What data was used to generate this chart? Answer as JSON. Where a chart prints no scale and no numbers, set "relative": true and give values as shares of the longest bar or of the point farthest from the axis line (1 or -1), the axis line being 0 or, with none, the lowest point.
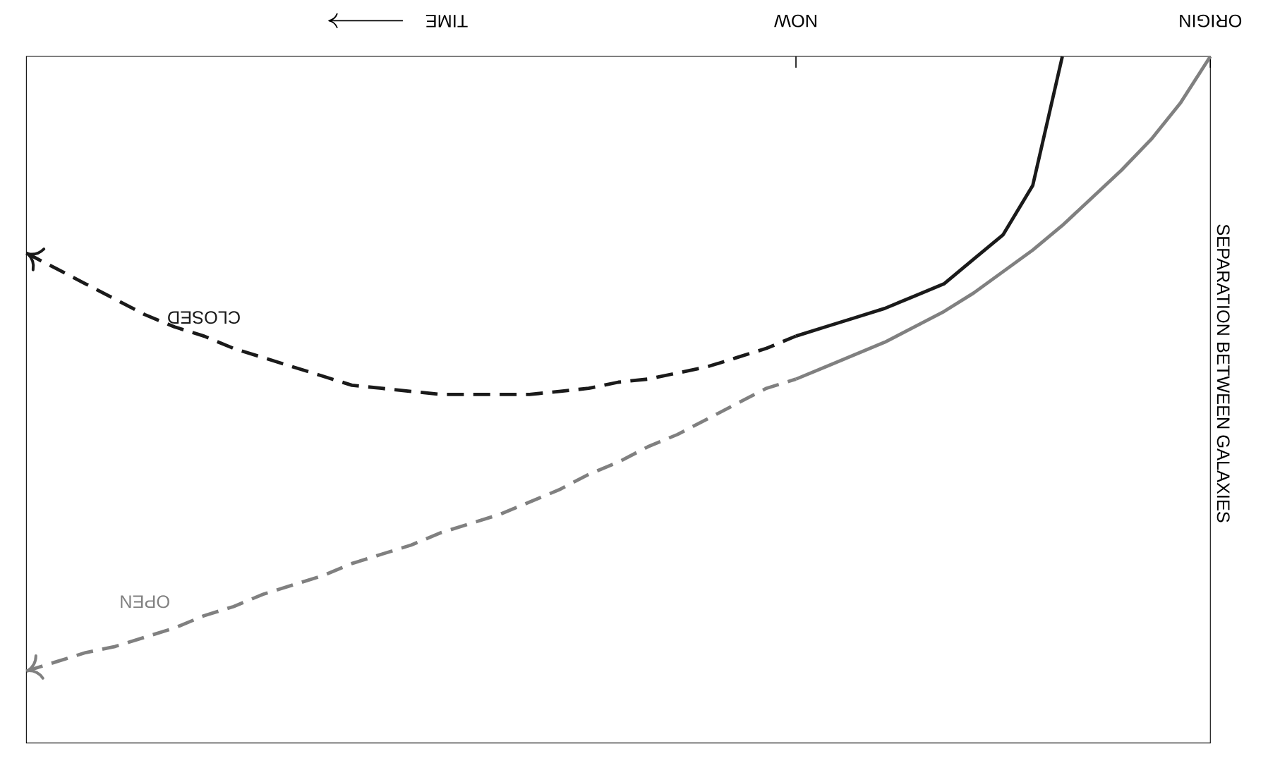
{
  "chart_data": {
    "type": "line",
    "relative": true,
    "xlabel": "TIME",
    "ylabel": "SEPARATION BETWEEN GALAXIES",
    "categories": [
      null,
      null,
      null,
      null,
      null,
      null,
      null,
      null,
      null,
      null,
      null,
      null,
      null,
      null,
      null,
      null,
      null,
      null,
      null,
      null,
      null,
      null,
      null,
      null,
      null,
      null,
      "NOW",
      null,
      null,
      null,
      null,
      null,
      null,
      null,
      null,
      null,
      null,
      null,
      null,
      null,
      "ORIGIN"
    ],
    "tick_labels": "x",
    "series": [
      {
        "color": "#1a1a1a",
        "line_style": "solid",
        "values": [
          null,
          null,
          null,
          null,
          null,
          null,
          null,
          null,
          null,
          null,
          null,
          null,
          null,
          null,
          null,
          null,
          null,
          null,
          null,
          null,
          null,
          null,
          null,
          null,
          null,
          null,
          -0.455,
          -0.44,
          -0.425,
          -0.41,
          -0.39,
          -0.37,
          -0.33,
          -0.29,
          -0.21,
          0,
          null,
          null,
          null,
          null,
          null
        ]
      },
      {
        "name": "CLOSED",
        "color": "#1a1a1a",
        "line_style": "dashed",
        "values": [
          -0.32,
          -0.345,
          -0.37,
          -0.395,
          -0.42,
          -0.44,
          -0.455,
          -0.475,
          -0.49,
          -0.505,
          -0.52,
          -0.535,
          -0.54,
          -0.545,
          -0.55,
          -0.55,
          -0.55,
          -0.55,
          -0.545,
          -0.54,
          -0.53,
          -0.525,
          -0.515,
          -0.505,
          -0.49,
          -0.475,
          -0.455,
          null,
          null,
          null,
          null,
          null,
          null,
          null,
          null,
          null,
          null,
          null,
          null,
          null,
          null
        ]
      },
      {
        "color": "#808080",
        "line_style": "solid",
        "values": [
          null,
          null,
          null,
          null,
          null,
          null,
          null,
          null,
          null,
          null,
          null,
          null,
          null,
          null,
          null,
          null,
          null,
          null,
          null,
          null,
          null,
          null,
          null,
          null,
          null,
          null,
          -0.525,
          -0.505,
          -0.485,
          -0.465,
          -0.44,
          -0.415,
          -0.385,
          -0.35,
          -0.315,
          -0.275,
          -0.23,
          -0.185,
          -0.135,
          -0.075,
          0
        ]
      },
      {
        "name": "OPEN",
        "color": "#808080",
        "line_style": "dashed",
        "values": [
          -1.0,
          -0.985,
          -0.97,
          -0.96,
          -0.945,
          -0.93,
          -0.91,
          -0.895,
          -0.875,
          -0.86,
          -0.845,
          -0.825,
          -0.81,
          -0.795,
          -0.775,
          -0.76,
          -0.745,
          -0.725,
          -0.705,
          -0.68,
          -0.66,
          -0.635,
          -0.615,
          -0.59,
          -0.565,
          -0.54,
          -0.525,
          null,
          null,
          null,
          null,
          null,
          null,
          null,
          null,
          null,
          null,
          null,
          null,
          null,
          null
        ]
      }
    ]
  }
}
